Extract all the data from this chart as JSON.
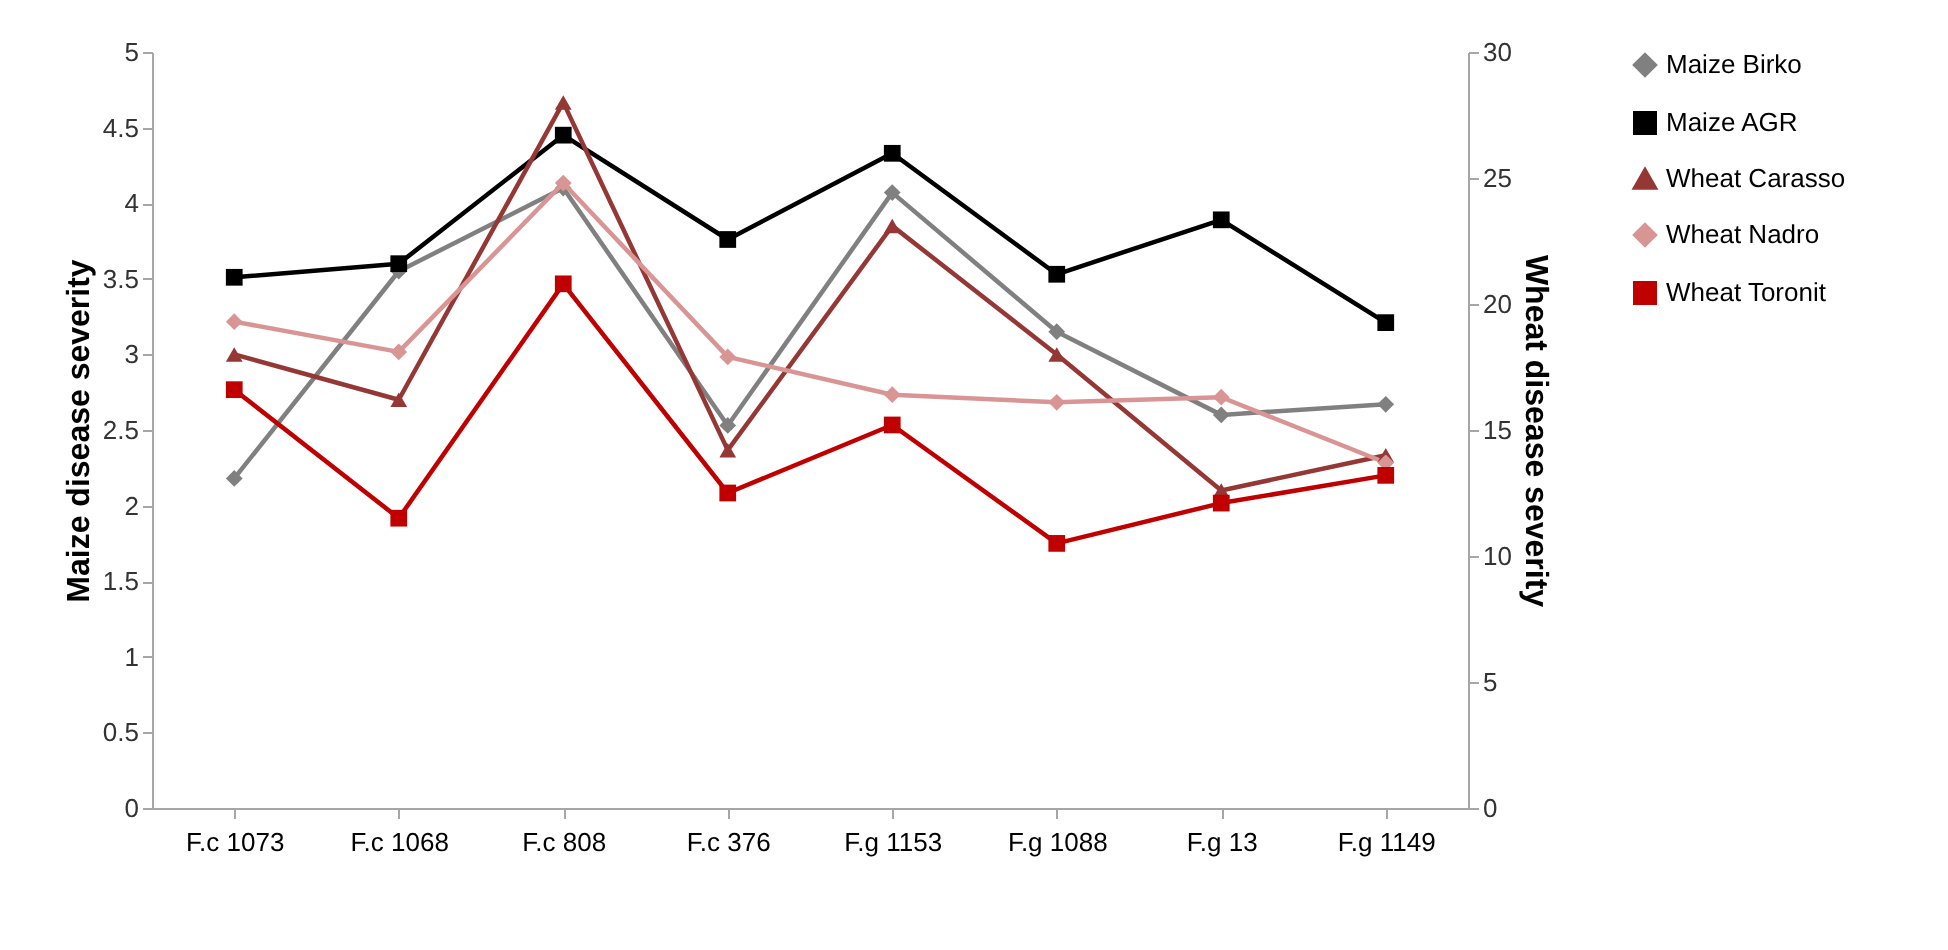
{
  "chart_data": {
    "type": "line",
    "xlabel": null,
    "ylabel": "Maize disease severity",
    "y2label": "Wheat disease severity",
    "categories": [
      "F.c 1073",
      "F.c 1068",
      "F.c 808",
      "F.c 376",
      "F.g 1153",
      "F.g 1088",
      "F.g 13",
      "F.g 1149"
    ],
    "ylim": [
      0,
      5
    ],
    "yticks": [
      0,
      0.5,
      1,
      1.5,
      2,
      2.5,
      3,
      3.5,
      4,
      4.5,
      5
    ],
    "y2lim": [
      0,
      30
    ],
    "y2ticks": [
      0,
      5,
      10,
      15,
      20,
      25,
      30
    ],
    "grid": false,
    "legend": "right",
    "line_style": "solid",
    "series": [
      {
        "name": "Maize Birko",
        "color": "#808080",
        "marker": "diamond",
        "values": [
          2.18,
          3.55,
          4.1,
          2.53,
          4.07,
          3.15,
          2.6,
          2.67
        ]
      },
      {
        "name": "Maize AGR",
        "color": "#000000",
        "marker": "square",
        "values": [
          3.51,
          3.6,
          4.45,
          3.76,
          4.33,
          3.53,
          3.89,
          3.21
        ]
      },
      {
        "name": "Wheat Carasso",
        "color": "#953735",
        "marker": "triangle",
        "axis": "y2",
        "values": [
          18.0,
          16.2,
          28.0,
          14.2,
          23.1,
          18.0,
          12.6,
          14.0
        ]
      },
      {
        "name": "Wheat Nadro",
        "color": "#d99594",
        "marker": "diamond",
        "axis": "y2",
        "values": [
          19.3,
          18.1,
          24.8,
          17.9,
          16.4,
          16.1,
          16.3,
          13.7
        ]
      },
      {
        "name": "Wheat Toronit",
        "color": "#c00000",
        "marker": "square",
        "axis": "y2",
        "values": [
          16.6,
          11.5,
          20.8,
          12.5,
          15.2,
          10.5,
          12.1,
          13.2
        ]
      }
    ]
  }
}
